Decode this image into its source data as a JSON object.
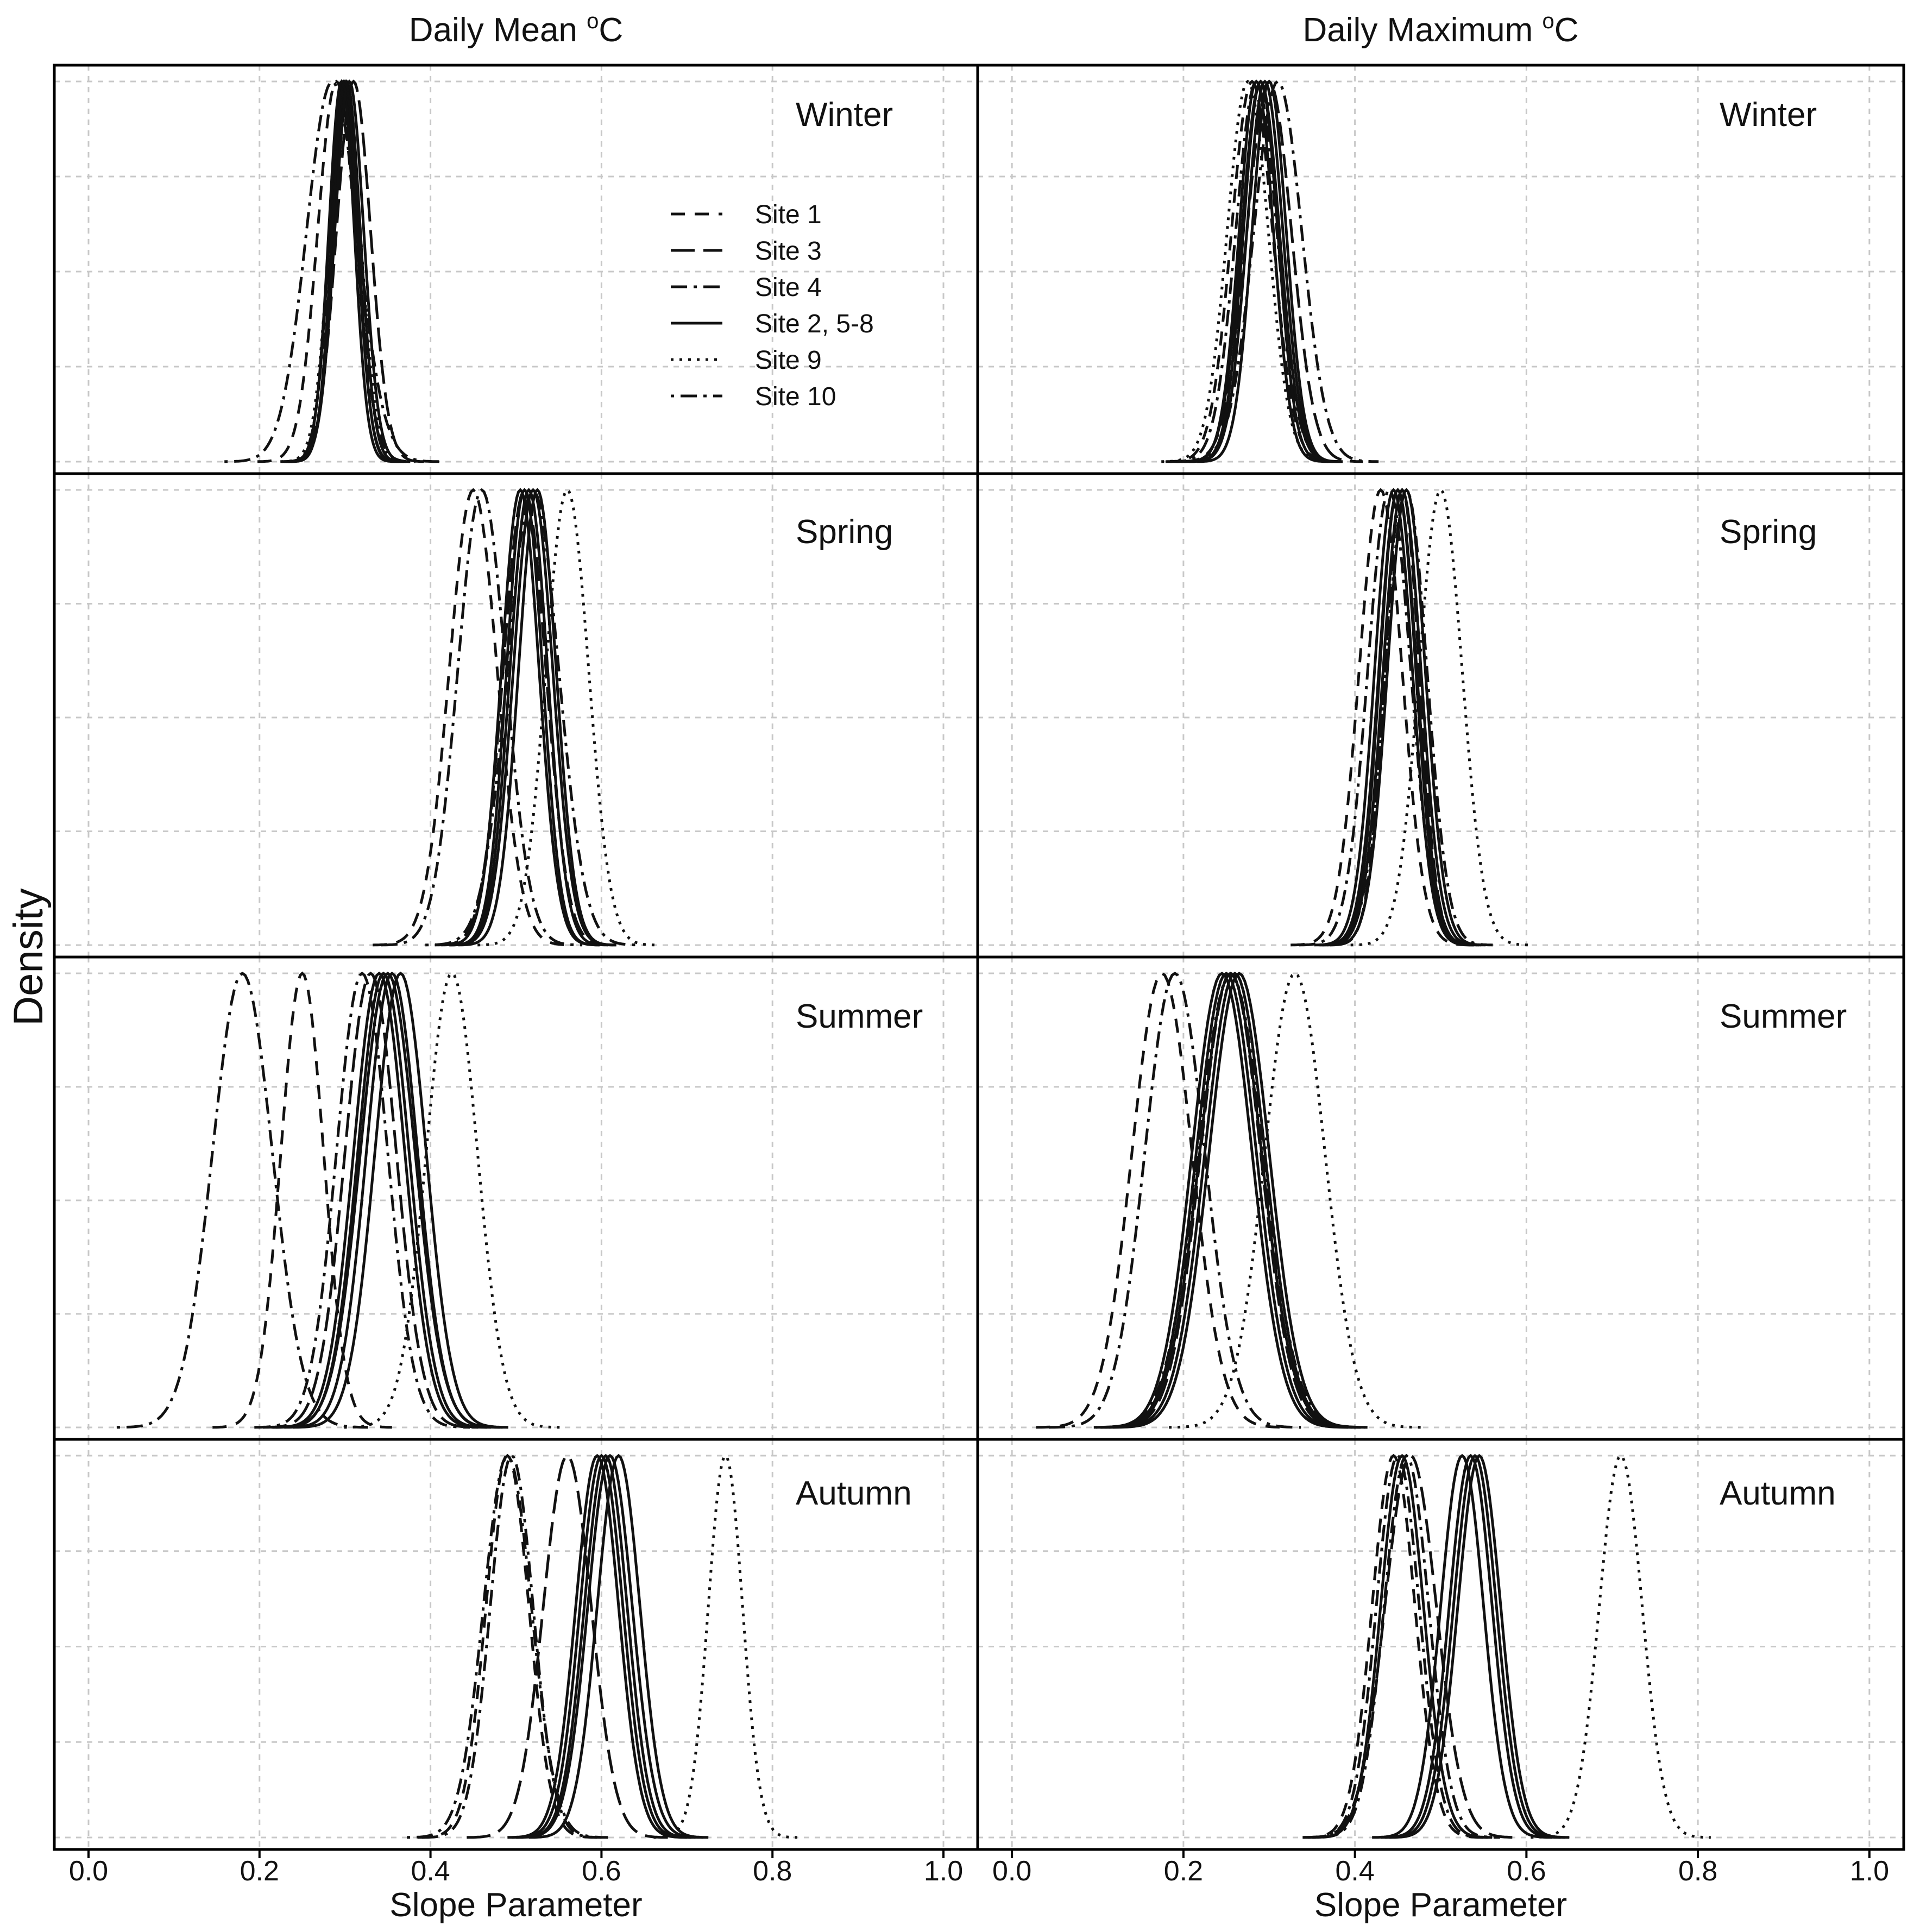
{
  "chart_data": {
    "type": "line",
    "description_kind": "density plots, faceted grid",
    "columns": [
      {
        "title_prefix": "Daily Mean ",
        "title_sup": "o",
        "title_suffix": "C"
      },
      {
        "title_prefix": "Daily Maximum ",
        "title_sup": "o",
        "title_suffix": "C"
      }
    ],
    "rows": [
      "Winter",
      "Spring",
      "Summer",
      "Autumn"
    ],
    "xlabel": "Slope Parameter",
    "ylabel": "Density",
    "xlim": [
      -0.04,
      1.04
    ],
    "x_ticks": [
      0.0,
      0.2,
      0.4,
      0.6,
      0.8,
      1.0
    ],
    "x_tick_labels": [
      "0.0",
      "0.2",
      "0.4",
      "0.6",
      "0.8",
      "1.0"
    ],
    "grid": true,
    "legend": {
      "placement": "top-panel-left",
      "entries": [
        {
          "label": "Site 1",
          "dash": "long-dash"
        },
        {
          "label": "Site 3",
          "dash": "longer-dash"
        },
        {
          "label": "Site 4",
          "dash": "dash-dot"
        },
        {
          "label": "Site 2, 5-8",
          "dash": "solid"
        },
        {
          "label": "Site 9",
          "dash": "dotted"
        },
        {
          "label": "Site 10",
          "dash": "dot-dash"
        }
      ]
    },
    "note": "Each curve is a normalized density (peak = 1). mean/sd in slope-parameter units.",
    "panels": [
      {
        "row": "Winter",
        "col": "Daily Mean",
        "curves": [
          {
            "site": "Site 1",
            "mean": 0.29,
            "sd": 0.022
          },
          {
            "site": "Site 3",
            "mean": 0.31,
            "sd": 0.02
          },
          {
            "site": "Site 4",
            "mean": 0.3,
            "sd": 0.017
          },
          {
            "site": "Site 2, 5-8",
            "mean": 0.298,
            "sd": 0.016
          },
          {
            "site": "Site 2, 5-8",
            "mean": 0.302,
            "sd": 0.016
          },
          {
            "site": "Site 2, 5-8",
            "mean": 0.296,
            "sd": 0.015
          },
          {
            "site": "Site 2, 5-8",
            "mean": 0.305,
            "sd": 0.017
          },
          {
            "site": "Site 2, 5-8",
            "mean": 0.3,
            "sd": 0.015
          },
          {
            "site": "Site 9",
            "mean": 0.3,
            "sd": 0.018
          },
          {
            "site": "Site 10",
            "mean": 0.285,
            "sd": 0.03
          }
        ]
      },
      {
        "row": "Spring",
        "col": "Daily Mean",
        "curves": [
          {
            "site": "Site 1",
            "mean": 0.45,
            "sd": 0.028
          },
          {
            "site": "Site 3",
            "mean": 0.51,
            "sd": 0.025
          },
          {
            "site": "Site 4",
            "mean": 0.46,
            "sd": 0.028
          },
          {
            "site": "Site 2, 5-8",
            "mean": 0.505,
            "sd": 0.022
          },
          {
            "site": "Site 2, 5-8",
            "mean": 0.515,
            "sd": 0.022
          },
          {
            "site": "Site 2, 5-8",
            "mean": 0.52,
            "sd": 0.023
          },
          {
            "site": "Site 2, 5-8",
            "mean": 0.525,
            "sd": 0.022
          },
          {
            "site": "Site 2, 5-8",
            "mean": 0.51,
            "sd": 0.021
          },
          {
            "site": "Site 9",
            "mean": 0.56,
            "sd": 0.025
          },
          {
            "site": "Site 10",
            "mean": 0.52,
            "sd": 0.03
          }
        ]
      },
      {
        "row": "Summer",
        "col": "Daily Mean",
        "curves": [
          {
            "site": "Site 1",
            "mean": 0.25,
            "sd": 0.025
          },
          {
            "site": "Site 3",
            "mean": 0.33,
            "sd": 0.03
          },
          {
            "site": "Site 4",
            "mean": 0.32,
            "sd": 0.03
          },
          {
            "site": "Site 2, 5-8",
            "mean": 0.34,
            "sd": 0.03
          },
          {
            "site": "Site 2, 5-8",
            "mean": 0.345,
            "sd": 0.03
          },
          {
            "site": "Site 2, 5-8",
            "mean": 0.35,
            "sd": 0.032
          },
          {
            "site": "Site 2, 5-8",
            "mean": 0.355,
            "sd": 0.03
          },
          {
            "site": "Site 2, 5-8",
            "mean": 0.365,
            "sd": 0.03
          },
          {
            "site": "Site 9",
            "mean": 0.425,
            "sd": 0.03
          },
          {
            "site": "Site 10",
            "mean": 0.18,
            "sd": 0.035
          }
        ]
      },
      {
        "row": "Autumn",
        "col": "Daily Mean",
        "curves": [
          {
            "site": "Site 1",
            "mean": 0.49,
            "sd": 0.025
          },
          {
            "site": "Site 3",
            "mean": 0.56,
            "sd": 0.028
          },
          {
            "site": "Site 4",
            "mean": 0.495,
            "sd": 0.025
          },
          {
            "site": "Site 2, 5-8",
            "mean": 0.595,
            "sd": 0.025
          },
          {
            "site": "Site 2, 5-8",
            "mean": 0.6,
            "sd": 0.025
          },
          {
            "site": "Site 2, 5-8",
            "mean": 0.605,
            "sd": 0.025
          },
          {
            "site": "Site 2, 5-8",
            "mean": 0.61,
            "sd": 0.026
          },
          {
            "site": "Site 2, 5-8",
            "mean": 0.62,
            "sd": 0.025
          },
          {
            "site": "Site 9",
            "mean": 0.745,
            "sd": 0.02
          },
          {
            "site": "Site 10",
            "mean": 0.49,
            "sd": 0.028
          }
        ]
      },
      {
        "row": "Winter",
        "col": "Daily Maximum",
        "curves": [
          {
            "site": "Site 1",
            "mean": 0.28,
            "sd": 0.024
          },
          {
            "site": "Site 3",
            "mean": 0.3,
            "sd": 0.026
          },
          {
            "site": "Site 4",
            "mean": 0.285,
            "sd": 0.024
          },
          {
            "site": "Site 2, 5-8",
            "mean": 0.285,
            "sd": 0.02
          },
          {
            "site": "Site 2, 5-8",
            "mean": 0.29,
            "sd": 0.02
          },
          {
            "site": "Site 2, 5-8",
            "mean": 0.295,
            "sd": 0.021
          },
          {
            "site": "Site 2, 5-8",
            "mean": 0.29,
            "sd": 0.022
          },
          {
            "site": "Site 2, 5-8",
            "mean": 0.3,
            "sd": 0.02
          },
          {
            "site": "Site 9",
            "mean": 0.275,
            "sd": 0.024
          },
          {
            "site": "Site 10",
            "mean": 0.31,
            "sd": 0.028
          }
        ]
      },
      {
        "row": "Spring",
        "col": "Daily Maximum",
        "curves": [
          {
            "site": "Site 1",
            "mean": 0.43,
            "sd": 0.025
          },
          {
            "site": "Site 3",
            "mean": 0.455,
            "sd": 0.02
          },
          {
            "site": "Site 4",
            "mean": 0.44,
            "sd": 0.025
          },
          {
            "site": "Site 2, 5-8",
            "mean": 0.445,
            "sd": 0.022
          },
          {
            "site": "Site 2, 5-8",
            "mean": 0.45,
            "sd": 0.022
          },
          {
            "site": "Site 2, 5-8",
            "mean": 0.45,
            "sd": 0.021
          },
          {
            "site": "Site 2, 5-8",
            "mean": 0.455,
            "sd": 0.022
          },
          {
            "site": "Site 2, 5-8",
            "mean": 0.46,
            "sd": 0.022
          },
          {
            "site": "Site 9",
            "mean": 0.5,
            "sd": 0.025
          },
          {
            "site": "Site 10",
            "mean": 0.46,
            "sd": 0.024
          }
        ]
      },
      {
        "row": "Summer",
        "col": "Daily Maximum",
        "curves": [
          {
            "site": "Site 1",
            "mean": 0.175,
            "sd": 0.035
          },
          {
            "site": "Site 3",
            "mean": 0.255,
            "sd": 0.035
          },
          {
            "site": "Site 4",
            "mean": 0.19,
            "sd": 0.035
          },
          {
            "site": "Site 2, 5-8",
            "mean": 0.245,
            "sd": 0.035
          },
          {
            "site": "Site 2, 5-8",
            "mean": 0.25,
            "sd": 0.035
          },
          {
            "site": "Site 2, 5-8",
            "mean": 0.255,
            "sd": 0.036
          },
          {
            "site": "Site 2, 5-8",
            "mean": 0.26,
            "sd": 0.035
          },
          {
            "site": "Site 2, 5-8",
            "mean": 0.265,
            "sd": 0.035
          },
          {
            "site": "Site 9",
            "mean": 0.33,
            "sd": 0.035
          },
          {
            "site": "Site 10",
            "mean": 0.255,
            "sd": 0.038
          }
        ]
      },
      {
        "row": "Autumn",
        "col": "Daily Maximum",
        "curves": [
          {
            "site": "Site 1",
            "mean": 0.445,
            "sd": 0.025
          },
          {
            "site": "Site 3",
            "mean": 0.465,
            "sd": 0.03
          },
          {
            "site": "Site 4",
            "mean": 0.45,
            "sd": 0.025
          },
          {
            "site": "Site 2, 5-8",
            "mean": 0.525,
            "sd": 0.025
          },
          {
            "site": "Site 2, 5-8",
            "mean": 0.535,
            "sd": 0.025
          },
          {
            "site": "Site 2, 5-8",
            "mean": 0.54,
            "sd": 0.025
          },
          {
            "site": "Site 2, 5-8",
            "mean": 0.545,
            "sd": 0.025
          },
          {
            "site": "Site 2, 5-8",
            "mean": 0.455,
            "sd": 0.025
          },
          {
            "site": "Site 9",
            "mean": 0.71,
            "sd": 0.025
          },
          {
            "site": "Site 10",
            "mean": 0.46,
            "sd": 0.026
          }
        ]
      }
    ]
  }
}
